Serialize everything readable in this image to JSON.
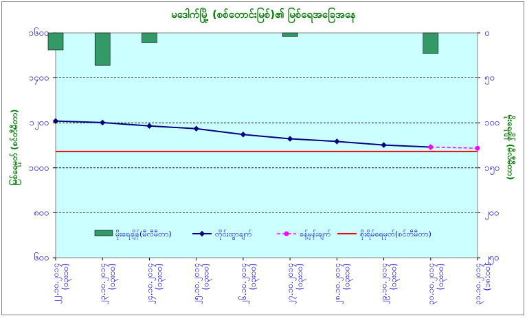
{
  "chart_data": {
    "type": "bar+line",
    "title": "မဒေါက်မြို့ (စစ်တောင်းမြစ်)၏ မြစ်ရေအခြေအနေ",
    "ylabel_left": "မြစ်ရေမှတ် (စင်တီမီတာ)",
    "ylabel_right": "မိုးရေချိန် (မီလီမီတာ)",
    "categories": [
      "၂၂.၁၀.၂၀၁၄",
      "၂၃.၁၀.၂၀၁၄",
      "၂၄.၁၀.၂၀၁၄",
      "၂၅.၁၀.၂၀၁၄",
      "၂၆.၁၀.၂၀၁၄",
      "၂၇.၁၀.၂၀၁၄",
      "၂၈.၁၀.၂၀၁၄",
      "၂၉.၁၀.၂၀၁၄",
      "၃၀.၁၀.၂၀၁၄",
      "၃၁.၁၀.၂၀၁၄"
    ],
    "category_time_label": "(၀၃း၀၀)",
    "category_time_label_last": "(၁၈:၀၀)",
    "left_axis": {
      "ylim": [
        600,
        1600
      ],
      "ticks": [
        600,
        800,
        1000,
        1200,
        1400,
        1600
      ],
      "tick_labels": [
        "၆၀၀",
        "၈၀၀",
        "၁၀၀၀",
        "၁၂၀၀",
        "၁၄၀၀",
        "၁၆၀၀"
      ]
    },
    "right_axis": {
      "reversed": true,
      "ylim": [
        0,
        250
      ],
      "ticks": [
        0,
        50,
        100,
        150,
        200,
        250
      ],
      "tick_labels": [
        "၀",
        "၅၀",
        "၁၀၀",
        "၁၅၀",
        "၂၀၀",
        "၂၅၀"
      ]
    },
    "series": [
      {
        "name": "မိုးရေချိန်(မီလီမီတာ)",
        "kind": "bar",
        "axis": "right",
        "color": "#339966",
        "values": [
          19,
          36,
          11,
          0,
          0,
          4,
          0,
          0,
          23,
          0
        ]
      },
      {
        "name": "တိုင်းထွာချက်",
        "kind": "line",
        "axis": "left",
        "color": "#000080",
        "values": [
          1208,
          1201,
          1186,
          1174,
          1148,
          1129,
          1117,
          1101,
          1092,
          null
        ]
      },
      {
        "name": "ခန့်မှန်းချက်",
        "kind": "dashed-line",
        "axis": "left",
        "color": "#ff00ff",
        "values": [
          null,
          null,
          null,
          null,
          null,
          null,
          null,
          null,
          1092,
          1087
        ]
      },
      {
        "name": "စိုးရိမ်ရေမှတ်(စင်တီမီတာ)",
        "kind": "hline",
        "axis": "left",
        "color": "#ff0000",
        "value": 1072
      }
    ],
    "plot_background": "#ccffff",
    "grid": true,
    "legend_placement": "bottom inside plot"
  }
}
